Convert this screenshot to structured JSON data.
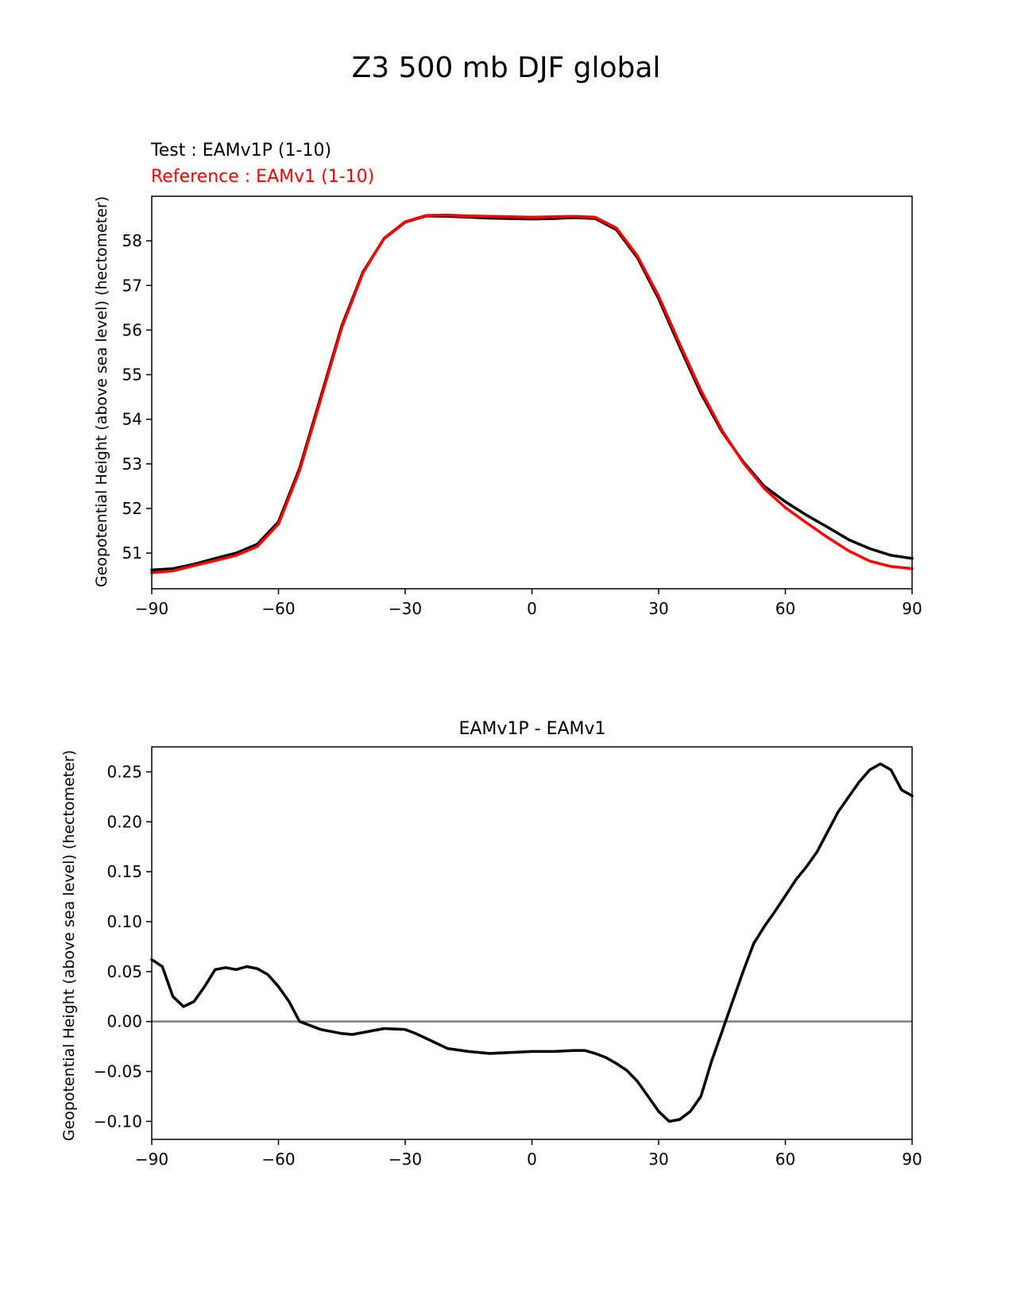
{
  "figure": {
    "title": "Z3 500 mb DJF global"
  },
  "colors": {
    "test": "#000000",
    "reference": "#ff0000",
    "zero_line": "#808080",
    "axes": "#000000"
  },
  "chart_data": [
    {
      "type": "line",
      "test_label": "Test : EAMv1P (1-10)",
      "reference_label": "Reference : EAMv1 (1-10)",
      "xlabel": "",
      "ylabel": "Geopotential Height (above sea level) (hectometer)",
      "xlim": [
        -90,
        90
      ],
      "ylim": [
        50.2,
        59.0
      ],
      "xticks": [
        -90,
        -60,
        -30,
        0,
        30,
        60,
        90
      ],
      "xtick_labels": [
        "−90",
        "−60",
        "−30",
        "0",
        "30",
        "60",
        "90"
      ],
      "yticks": [
        51,
        52,
        53,
        54,
        55,
        56,
        57,
        58
      ],
      "ytick_labels": [
        "51",
        "52",
        "53",
        "54",
        "55",
        "56",
        "57",
        "58"
      ],
      "grid": false,
      "series": [
        {
          "name": "Test : EAMv1P (1-10)",
          "x": [
            -90,
            -85,
            -80,
            -75,
            -70,
            -65,
            -60,
            -55,
            -50,
            -45,
            -40,
            -35,
            -30,
            -25,
            -20,
            -15,
            -10,
            -5,
            0,
            5,
            10,
            15,
            20,
            25,
            30,
            35,
            40,
            45,
            50,
            55,
            60,
            65,
            70,
            75,
            80,
            85,
            90
          ],
          "y": [
            50.62,
            50.65,
            50.75,
            50.88,
            51.0,
            51.2,
            51.7,
            52.9,
            54.5,
            56.1,
            57.3,
            58.05,
            58.42,
            58.56,
            58.55,
            58.53,
            58.51,
            58.5,
            58.49,
            58.5,
            58.52,
            58.5,
            58.25,
            57.62,
            56.7,
            55.62,
            54.58,
            53.72,
            53.05,
            52.5,
            52.15,
            51.85,
            51.58,
            51.3,
            51.1,
            50.95,
            50.88
          ]
        },
        {
          "name": "Reference : EAMv1 (1-10)",
          "x": [
            -90,
            -85,
            -80,
            -75,
            -70,
            -65,
            -60,
            -55,
            -50,
            -45,
            -40,
            -35,
            -30,
            -25,
            -20,
            -15,
            -10,
            -5,
            0,
            5,
            10,
            15,
            20,
            25,
            30,
            35,
            40,
            45,
            50,
            55,
            60,
            65,
            70,
            75,
            80,
            85,
            90
          ],
          "y": [
            50.56,
            50.6,
            50.72,
            50.83,
            50.95,
            51.15,
            51.65,
            52.85,
            54.45,
            56.06,
            57.28,
            58.06,
            58.43,
            58.57,
            58.58,
            58.56,
            58.55,
            58.54,
            58.53,
            58.54,
            58.55,
            58.53,
            58.29,
            57.66,
            56.76,
            55.69,
            54.65,
            53.75,
            53.03,
            52.45,
            52.02,
            51.68,
            51.35,
            51.05,
            50.82,
            50.7,
            50.65
          ]
        }
      ]
    },
    {
      "type": "line",
      "title": "EAMv1P - EAMv1",
      "xlabel": "",
      "ylabel": "Geopotential Height (above sea level) (hectometer)",
      "xlim": [
        -90,
        90
      ],
      "ylim": [
        -0.118,
        0.275
      ],
      "xticks": [
        -90,
        -60,
        -30,
        0,
        30,
        60,
        90
      ],
      "xtick_labels": [
        "−90",
        "−60",
        "−30",
        "0",
        "30",
        "60",
        "90"
      ],
      "yticks": [
        -0.1,
        -0.05,
        0.0,
        0.05,
        0.1,
        0.15,
        0.2,
        0.25
      ],
      "ytick_labels": [
        "−0.10",
        "−0.05",
        "0.00",
        "0.05",
        "0.10",
        "0.15",
        "0.20",
        "0.25"
      ],
      "grid": false,
      "zero_line": 0.0,
      "series": [
        {
          "name": "EAMv1P - EAMv1",
          "x": [
            -90,
            -87.5,
            -85,
            -82.5,
            -80,
            -77.5,
            -75,
            -72.5,
            -70,
            -67.5,
            -65,
            -62.5,
            -60,
            -57.5,
            -55,
            -50,
            -45,
            -42.5,
            -40,
            -37.5,
            -35,
            -30,
            -27.5,
            -25,
            -20,
            -15,
            -12.5,
            -10,
            -5,
            0,
            5,
            10,
            12.5,
            15,
            17.5,
            20,
            22.5,
            25,
            27.5,
            30,
            32.5,
            35,
            37.5,
            40,
            42.5,
            45,
            47.5,
            50,
            52.5,
            55,
            57.5,
            60,
            62.5,
            65,
            67.5,
            70,
            72.5,
            75,
            77.5,
            80,
            82.5,
            85,
            87.5,
            90
          ],
          "y": [
            0.062,
            0.055,
            0.025,
            0.015,
            0.02,
            0.035,
            0.052,
            0.054,
            0.052,
            0.055,
            0.053,
            0.047,
            0.035,
            0.02,
            0.0,
            -0.008,
            -0.012,
            -0.013,
            -0.011,
            -0.009,
            -0.007,
            -0.008,
            -0.012,
            -0.017,
            -0.027,
            -0.03,
            -0.031,
            -0.032,
            -0.031,
            -0.03,
            -0.03,
            -0.029,
            -0.029,
            -0.032,
            -0.036,
            -0.042,
            -0.049,
            -0.06,
            -0.075,
            -0.09,
            -0.1,
            -0.098,
            -0.09,
            -0.075,
            -0.04,
            -0.01,
            0.02,
            0.05,
            0.078,
            0.095,
            0.11,
            0.126,
            0.142,
            0.155,
            0.17,
            0.19,
            0.21,
            0.225,
            0.24,
            0.252,
            0.258,
            0.252,
            0.232,
            0.226
          ]
        }
      ]
    }
  ]
}
